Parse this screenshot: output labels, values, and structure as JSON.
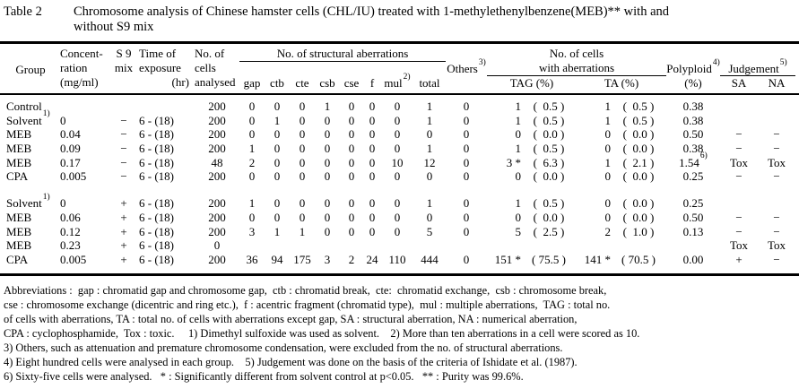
{
  "title": {
    "label": "Table 2",
    "line1": "Chromosome analysis of Chinese hamster cells (CHL/IU) treated with 1-methylethenylbenzene(MEB)** with and",
    "line2": "without S9 mix"
  },
  "table": {
    "header": {
      "group": "Group",
      "conc1": "Concent-",
      "conc2": "ration",
      "conc3": "(mg/ml)",
      "s9_1": "S 9",
      "s9_2": "mix",
      "time1": "Time of",
      "time2": "exposure",
      "time3": "(hr)",
      "cells1": "No. of",
      "cells2": "cells",
      "cells3": "analysed",
      "struct_group": "No. of structural aberrations",
      "gap": "gap",
      "ctb": "ctb",
      "cte": "cte",
      "csb": "csb",
      "cse": "cse",
      "f": "f",
      "mul": "mul",
      "mul_sup": "2)",
      "total": "total",
      "others": "Others",
      "others_sup": "3)",
      "aberr1": "No. of cells",
      "aberr2": "with aberrations",
      "tag": "TAG (%)",
      "ta": "TA (%)",
      "poly": "Polyploid",
      "poly_sup": "4)",
      "poly_unit": "(%)",
      "judge": "Judgement",
      "judge_sup": "5)",
      "sa": "SA",
      "na": "NA"
    },
    "blocks": [
      {
        "rows": [
          {
            "group": "Control",
            "gsup": "",
            "conc": "",
            "s9": "",
            "time": "",
            "cells": "200",
            "gap": "0",
            "ctb": "0",
            "cte": "0",
            "csb": "1",
            "cse": "0",
            "f": "0",
            "mul": "0",
            "total": "1",
            "others": "0",
            "tag_n": "1",
            "tag_p": "(  0.5 )",
            "ta_n": "1",
            "ta_p": "(  0.5 )",
            "poly": "0.38",
            "psup": "",
            "sa": "",
            "na": ""
          },
          {
            "group": "Solvent",
            "gsup": "1)",
            "conc": "0",
            "s9": "−",
            "time": "6 - (18)",
            "cells": "200",
            "gap": "0",
            "ctb": "1",
            "cte": "0",
            "csb": "0",
            "cse": "0",
            "f": "0",
            "mul": "0",
            "total": "1",
            "others": "0",
            "tag_n": "1",
            "tag_p": "(  0.5 )",
            "ta_n": "1",
            "ta_p": "(  0.5 )",
            "poly": "0.38",
            "psup": "",
            "sa": "",
            "na": ""
          },
          {
            "group": "MEB",
            "gsup": "",
            "conc": "0.04",
            "s9": "−",
            "time": "6 - (18)",
            "cells": "200",
            "gap": "0",
            "ctb": "0",
            "cte": "0",
            "csb": "0",
            "cse": "0",
            "f": "0",
            "mul": "0",
            "total": "0",
            "others": "0",
            "tag_n": "0",
            "tag_p": "(  0.0 )",
            "ta_n": "0",
            "ta_p": "(  0.0 )",
            "poly": "0.50",
            "psup": "",
            "sa": "−",
            "na": "−"
          },
          {
            "group": "MEB",
            "gsup": "",
            "conc": "0.09",
            "s9": "−",
            "time": "6 - (18)",
            "cells": "200",
            "gap": "1",
            "ctb": "0",
            "cte": "0",
            "csb": "0",
            "cse": "0",
            "f": "0",
            "mul": "0",
            "total": "1",
            "others": "0",
            "tag_n": "1",
            "tag_p": "(  0.5 )",
            "ta_n": "0",
            "ta_p": "(  0.0 )",
            "poly": "0.38",
            "psup": "",
            "sa": "−",
            "na": "−"
          },
          {
            "group": "MEB",
            "gsup": "",
            "conc": "0.17",
            "s9": "−",
            "time": "6 - (18)",
            "cells": "48",
            "gap": "2",
            "ctb": "0",
            "cte": "0",
            "csb": "0",
            "cse": "0",
            "f": "0",
            "mul": "10",
            "total": "12",
            "others": "0",
            "tag_n": "3 *",
            "tag_p": "(  6.3 )",
            "ta_n": "1",
            "ta_p": "(  2.1 )",
            "poly": "1.54",
            "psup": "6)",
            "sa": "Tox",
            "na": "Tox"
          },
          {
            "group": "CPA",
            "gsup": "",
            "conc": "0.005",
            "s9": "−",
            "time": "6 - (18)",
            "cells": "200",
            "gap": "0",
            "ctb": "0",
            "cte": "0",
            "csb": "0",
            "cse": "0",
            "f": "0",
            "mul": "0",
            "total": "0",
            "others": "0",
            "tag_n": "0",
            "tag_p": "(  0.0 )",
            "ta_n": "0",
            "ta_p": "(  0.0 )",
            "poly": "0.25",
            "psup": "",
            "sa": "−",
            "na": "−"
          }
        ]
      },
      {
        "rows": [
          {
            "group": "Solvent",
            "gsup": "1)",
            "conc": "0",
            "s9": "+",
            "time": "6 - (18)",
            "cells": "200",
            "gap": "1",
            "ctb": "0",
            "cte": "0",
            "csb": "0",
            "cse": "0",
            "f": "0",
            "mul": "0",
            "total": "1",
            "others": "0",
            "tag_n": "1",
            "tag_p": "(  0.5 )",
            "ta_n": "0",
            "ta_p": "(  0.0 )",
            "poly": "0.25",
            "psup": "",
            "sa": "",
            "na": ""
          },
          {
            "group": "MEB",
            "gsup": "",
            "conc": "0.06",
            "s9": "+",
            "time": "6 - (18)",
            "cells": "200",
            "gap": "0",
            "ctb": "0",
            "cte": "0",
            "csb": "0",
            "cse": "0",
            "f": "0",
            "mul": "0",
            "total": "0",
            "others": "0",
            "tag_n": "0",
            "tag_p": "(  0.0 )",
            "ta_n": "0",
            "ta_p": "(  0.0 )",
            "poly": "0.50",
            "psup": "",
            "sa": "−",
            "na": "−"
          },
          {
            "group": "MEB",
            "gsup": "",
            "conc": "0.12",
            "s9": "+",
            "time": "6 - (18)",
            "cells": "200",
            "gap": "3",
            "ctb": "1",
            "cte": "1",
            "csb": "0",
            "cse": "0",
            "f": "0",
            "mul": "0",
            "total": "5",
            "others": "0",
            "tag_n": "5",
            "tag_p": "(  2.5 )",
            "ta_n": "2",
            "ta_p": "(  1.0 )",
            "poly": "0.13",
            "psup": "",
            "sa": "−",
            "na": "−"
          },
          {
            "group": "MEB",
            "gsup": "",
            "conc": "0.23",
            "s9": "+",
            "time": "6 - (18)",
            "cells": "0",
            "gap": "",
            "ctb": "",
            "cte": "",
            "csb": "",
            "cse": "",
            "f": "",
            "mul": "",
            "total": "",
            "others": "",
            "tag_n": "",
            "tag_p": "",
            "ta_n": "",
            "ta_p": "",
            "poly": "",
            "psup": "",
            "sa": "Tox",
            "na": "Tox"
          },
          {
            "group": "CPA",
            "gsup": "",
            "conc": "0.005",
            "s9": "+",
            "time": "6 - (18)",
            "cells": "200",
            "gap": "36",
            "ctb": "94",
            "cte": "175",
            "csb": "3",
            "cse": "2",
            "f": "24",
            "mul": "110",
            "total": "444",
            "others": "0",
            "tag_n": "151 *",
            "tag_p": "( 75.5 )",
            "ta_n": "141 *",
            "ta_p": "( 70.5 )",
            "poly": "0.00",
            "psup": "",
            "sa": "+",
            "na": "−"
          }
        ]
      }
    ]
  },
  "footnotes": [
    "Abbreviations :  gap : chromatid gap and chromosome gap,  ctb : chromatid break,  cte:  chromatid exchange,  csb : chromosome break,",
    "cse : chromosome exchange (dicentric and ring etc.),  f : acentric fragment (chromatid type),  mul : multiple aberrations,  TAG : total no.",
    "of cells with aberrations, TA : total no. of cells with aberrations except gap, SA : structural aberration, NA : numerical aberration,",
    "CPA : cyclophosphamide,  Tox : toxic.     1) Dimethyl sulfoxide was used as solvent.    2) More than ten aberrations in a cell were scored as 10.",
    "3) Others, such as attenuation and premature chromosome condensation, were excluded from the no. of structural aberrations.",
    "4) Eight hundred cells were analysed in each group.    5) Judgement was done on the basis of the criteria of Ishidate et al. (1987).",
    "6) Sixty-five cells were analysed.   * : Significantly different from solvent control at p<0.05.   ** : Purity was 99.6%."
  ]
}
